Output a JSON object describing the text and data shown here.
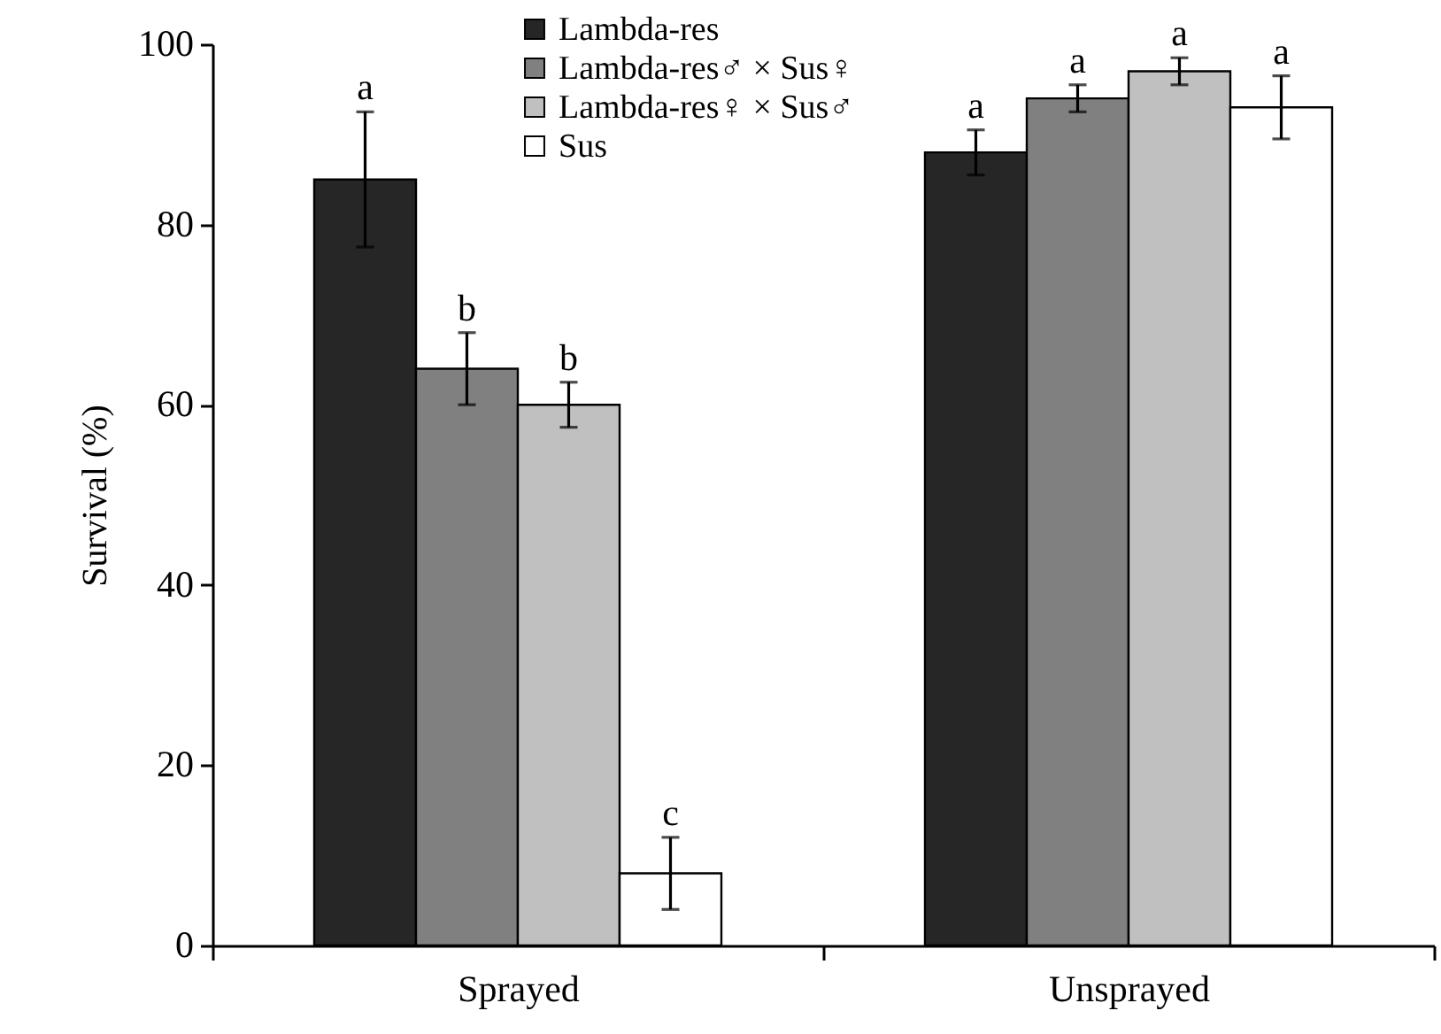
{
  "chart_data": {
    "type": "bar",
    "ylabel": "Survival (%)",
    "categories": [
      "Sprayed",
      "Unsprayed"
    ],
    "series": [
      {
        "name": "Lambda-res",
        "color": "#262626",
        "values": [
          85,
          88
        ],
        "errors": [
          7.5,
          2.5
        ],
        "value_labels": [
          "a",
          "a"
        ]
      },
      {
        "name": "Lambda-res♂ × Sus♀",
        "color": "#808080",
        "values": [
          64,
          94
        ],
        "errors": [
          4,
          1.5
        ],
        "value_labels": [
          "b",
          "a"
        ]
      },
      {
        "name": "Lambda-res♀ × Sus♂",
        "color": "#c0c0c0",
        "values": [
          60,
          97
        ],
        "errors": [
          2.5,
          1.5
        ],
        "value_labels": [
          "b",
          "a"
        ]
      },
      {
        "name": "Sus",
        "color": "#ffffff",
        "values": [
          8,
          93
        ],
        "errors": [
          4,
          [
            89.5,
            96.5
          ]
        ],
        "value_labels": [
          "c",
          "a"
        ]
      }
    ],
    "ylim": [
      0,
      100
    ],
    "yticks": [
      0,
      20,
      40,
      60,
      80,
      100
    ],
    "legend": "top",
    "grid": false
  }
}
